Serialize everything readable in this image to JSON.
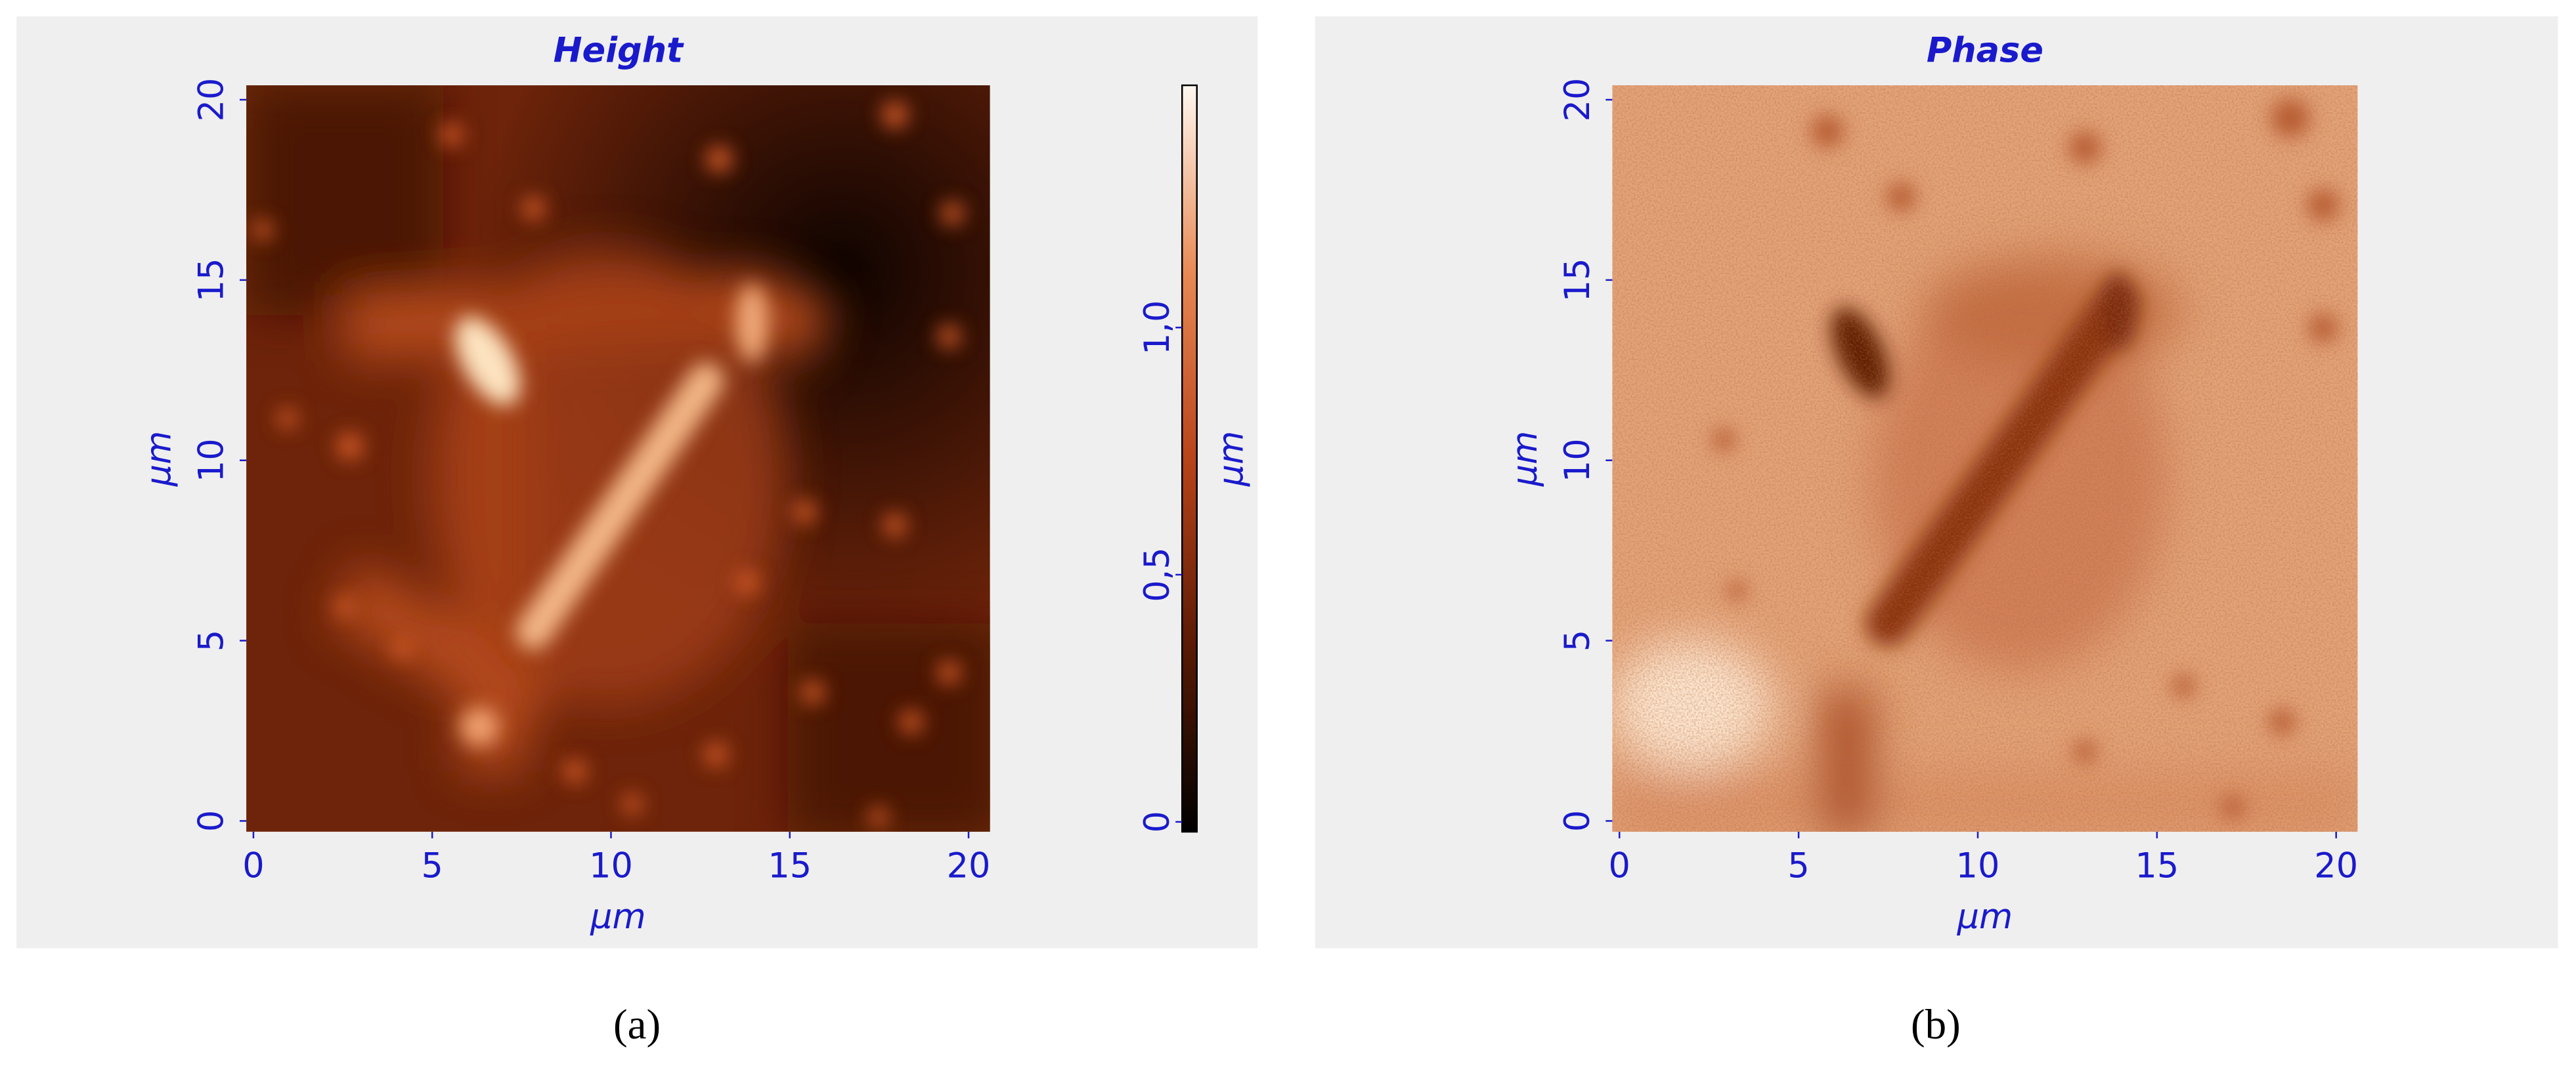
{
  "chart_data": [
    {
      "type": "heatmap",
      "title": "Height",
      "xlabel": "μm",
      "ylabel": "μm",
      "xlim": [
        -0.2,
        20.6
      ],
      "ylim": [
        -0.3,
        20.4
      ],
      "xticks": [
        0,
        5,
        10,
        15,
        20
      ],
      "yticks": [
        0,
        5,
        10,
        15,
        20
      ],
      "colorbar": {
        "label": "μm",
        "clim": [
          -0.02,
          1.49
        ],
        "ticks": [
          0,
          {
            "value": 0.5,
            "label": "0,5"
          },
          {
            "value": 1.0,
            "label": "1,0"
          }
        ],
        "colors": [
          "#000000",
          "#5a1a05",
          "#b8441a",
          "#e88a55",
          "#fff8f0"
        ]
      },
      "caption": "(a)"
    },
    {
      "type": "heatmap",
      "title": "Phase",
      "xlabel": "μm",
      "ylabel": "μm",
      "xlim": [
        -0.2,
        20.6
      ],
      "ylim": [
        -0.3,
        20.4
      ],
      "xticks": [
        0,
        5,
        10,
        15,
        20
      ],
      "yticks": [
        0,
        5,
        10,
        15,
        20
      ],
      "caption": "(b)"
    }
  ]
}
